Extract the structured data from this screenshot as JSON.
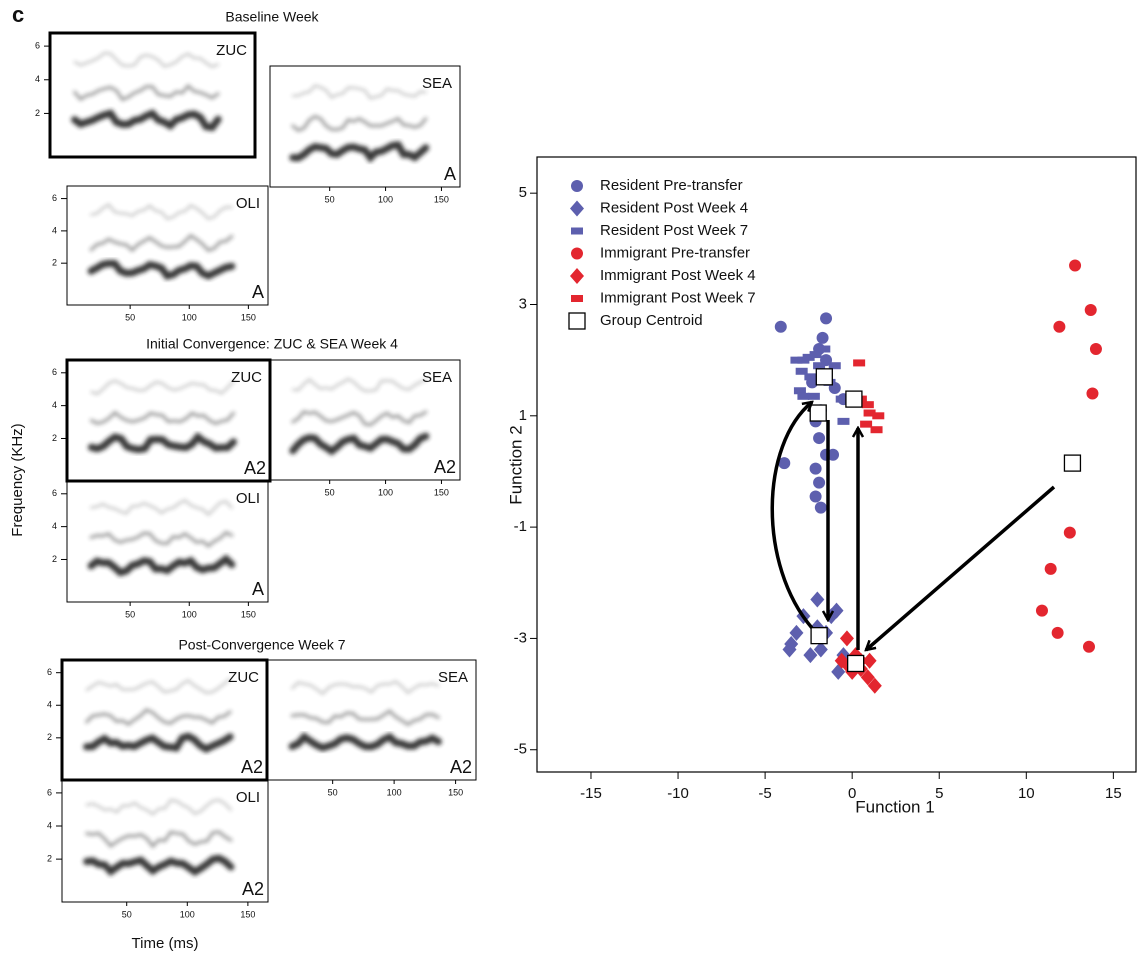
{
  "panel_label": "c",
  "spectrograms": {
    "y_label": "Frequency (KHz)",
    "x_label": "Time (ms)",
    "freq_ticks": [
      2,
      4,
      6
    ],
    "time_ticks": [
      50,
      100,
      150
    ],
    "sections": [
      {
        "title": "Baseline Week",
        "panels": [
          {
            "name": "ZUC",
            "corner": null
          },
          {
            "name": "SEA",
            "corner": "A"
          },
          {
            "name": "OLI",
            "corner": "A"
          }
        ]
      },
      {
        "title": "Initial Convergence: ZUC & SEA Week 4",
        "panels": [
          {
            "name": "ZUC",
            "corner": "A2"
          },
          {
            "name": "SEA",
            "corner": "A2"
          },
          {
            "name": "OLI",
            "corner": "A"
          }
        ]
      },
      {
        "title": "Post-Convergence Week 7",
        "panels": [
          {
            "name": "ZUC",
            "corner": "A2"
          },
          {
            "name": "SEA",
            "corner": "A2"
          },
          {
            "name": "OLI",
            "corner": "A2"
          }
        ]
      }
    ]
  },
  "chart_data": {
    "type": "scatter",
    "x_label": "Function 1",
    "y_label": "Function 2",
    "xlim": [
      -18.1,
      16.3
    ],
    "ylim": [
      -5.4,
      5.65
    ],
    "xticks": [
      -15,
      -10,
      -5,
      0,
      5,
      10,
      15
    ],
    "yticks": [
      -5,
      -3,
      -1,
      1,
      3,
      5
    ],
    "grid": false,
    "legend": "top-left",
    "series": [
      {
        "name": "Resident Pre-transfer",
        "color": "#5d5fae",
        "marker": "circle",
        "x": [
          -4.1,
          -1.5,
          -1.7,
          -1.9,
          -1.5,
          -2.3,
          -1.0,
          -0.5,
          -1.8,
          -2.1,
          -1.9,
          -3.9,
          -1.1,
          -1.5,
          -2.1,
          -2.1,
          -1.8,
          -1.9
        ],
        "values": [
          2.6,
          2.75,
          2.4,
          2.2,
          2.0,
          1.6,
          1.5,
          1.3,
          1.1,
          0.9,
          0.6,
          0.15,
          0.3,
          0.3,
          0.05,
          -0.45,
          -0.65,
          -0.2
        ]
      },
      {
        "name": "Resident Post Week 4",
        "color": "#5d5fae",
        "marker": "diamond",
        "x": [
          -3.5,
          -3.2,
          -2.8,
          -2.0,
          -1.2,
          -0.9,
          -1.5,
          -3.6,
          -2.4,
          -1.8,
          -0.8,
          -0.5,
          -2.0
        ],
        "values": [
          -3.1,
          -2.9,
          -2.6,
          -2.3,
          -2.6,
          -2.5,
          -2.9,
          -3.2,
          -3.3,
          -3.2,
          -3.6,
          -3.3,
          -2.8
        ]
      },
      {
        "name": "Resident Post Week 7",
        "color": "#5d5fae",
        "marker": "dash",
        "x": [
          -3.2,
          -2.8,
          -2.5,
          -2.1,
          -1.6,
          -1.9,
          -2.9,
          -2.4,
          -3.0,
          -2.8,
          -1.3,
          -0.6,
          -0.5,
          -1.0,
          -2.2
        ],
        "values": [
          2.0,
          2.0,
          2.05,
          2.1,
          2.2,
          1.9,
          1.8,
          1.7,
          1.45,
          1.35,
          1.6,
          1.3,
          0.9,
          1.9,
          1.35
        ]
      },
      {
        "name": "Immigrant Pre-transfer",
        "color": "#e3262f",
        "marker": "circle",
        "x": [
          12.8,
          11.9,
          13.7,
          14.0,
          13.8,
          12.5,
          11.4,
          10.9,
          11.8,
          13.6
        ],
        "values": [
          3.7,
          2.6,
          2.9,
          2.2,
          1.4,
          -1.1,
          -1.75,
          -2.5,
          -2.9,
          -3.15
        ]
      },
      {
        "name": "Immigrant Post Week 4",
        "color": "#e3262f",
        "marker": "diamond",
        "x": [
          -0.3,
          0.2,
          -0.6,
          0.5,
          0.9,
          0.5,
          1.3,
          -0.2,
          1.0,
          0.0
        ],
        "values": [
          -3.0,
          -3.3,
          -3.4,
          -3.55,
          -3.7,
          -3.4,
          -3.85,
          -3.5,
          -3.4,
          -3.6
        ]
      },
      {
        "name": "Immigrant Post Week 7",
        "color": "#e3262f",
        "marker": "dash",
        "x": [
          0.4,
          1.0,
          1.5,
          0.8,
          1.4,
          0.5,
          0.9
        ],
        "values": [
          1.95,
          1.05,
          1.0,
          0.85,
          0.75,
          1.3,
          1.2
        ]
      },
      {
        "name": "Group Centroid",
        "color": "#ffffff",
        "marker": "square",
        "x": [
          -1.6,
          0.1,
          -1.95,
          12.65,
          -1.9,
          0.2
        ],
        "values": [
          1.7,
          1.3,
          1.05,
          0.15,
          -2.95,
          -3.45
        ]
      }
    ]
  }
}
